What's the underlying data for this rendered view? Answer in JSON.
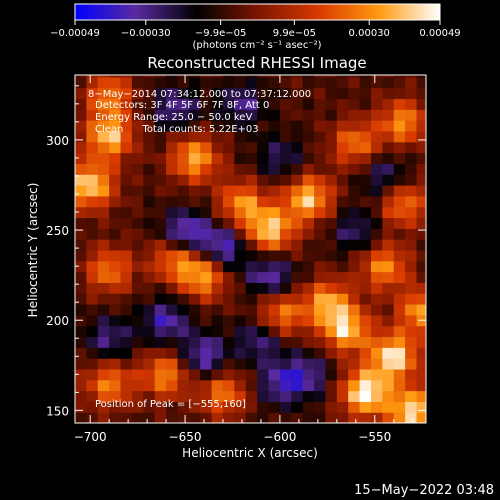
{
  "chart_data": {
    "type": "heatmap",
    "title": "Reconstructed RHESSI Image",
    "xlabel": "Heliocentric X (arcsec)",
    "ylabel": "Heliocentric Y (arcsec)",
    "xlim": [
      -708,
      -523
    ],
    "ylim": [
      143,
      336
    ],
    "x_ticks": [
      -700,
      -650,
      -600,
      -550
    ],
    "x_tick_labels": [
      "−700",
      "−650",
      "−600",
      "−550"
    ],
    "y_ticks": [
      150,
      200,
      250,
      300
    ],
    "y_tick_labels": [
      "150",
      "200",
      "250",
      "300"
    ],
    "colorbar": {
      "range": [
        -0.00049,
        0.00049
      ],
      "tick_values": [
        -0.00049,
        -0.0003,
        -9.9e-05,
        9.9e-05,
        0.0003,
        0.00049
      ],
      "tick_labels": [
        "−0.00049",
        "−0.00030",
        "−9.9e−05",
        "9.9e−05",
        "0.00030",
        "0.00049"
      ],
      "units": "(photons cm⁻² s⁻¹ asec⁻²)",
      "colormap": [
        "#0000ff",
        "#5a2aa0",
        "#000000",
        "#7a1500",
        "#d83a00",
        "#ff9a10",
        "#ffffff"
      ]
    },
    "annotations": [
      "8−May−2014 07:34:12.000  to 07:37:12.000",
      "Detectors: 3F 4F 5F 6F 7F 8F, Att 0",
      "Energy Range: 25.0 − 50.0 keV",
      "Clean      Total counts: 5.22E+03"
    ],
    "peak_label": "Position of Peak = [−555,160]",
    "peak": [
      -555,
      160
    ],
    "hot_spots": [
      {
        "x": -700,
        "y": 275,
        "value": 0.00042
      },
      {
        "x": -690,
        "y": 302,
        "value": 0.00038
      },
      {
        "x": -645,
        "y": 290,
        "value": 0.00035
      },
      {
        "x": -620,
        "y": 265,
        "value": 0.0003
      },
      {
        "x": -605,
        "y": 250,
        "value": 0.0004
      },
      {
        "x": -585,
        "y": 268,
        "value": 0.00039
      },
      {
        "x": -575,
        "y": 210,
        "value": 0.00032
      },
      {
        "x": -600,
        "y": 203,
        "value": 0.0003
      },
      {
        "x": -640,
        "y": 225,
        "value": 0.00034
      },
      {
        "x": -655,
        "y": 235,
        "value": 0.0003
      },
      {
        "x": -690,
        "y": 228,
        "value": 0.00026
      },
      {
        "x": -690,
        "y": 165,
        "value": 0.00028
      },
      {
        "x": -660,
        "y": 170,
        "value": 0.0003
      },
      {
        "x": -630,
        "y": 160,
        "value": 0.00027
      },
      {
        "x": -555,
        "y": 160,
        "value": 0.00049
      },
      {
        "x": -540,
        "y": 180,
        "value": 0.00045
      },
      {
        "x": -530,
        "y": 150,
        "value": 0.00044
      },
      {
        "x": -565,
        "y": 195,
        "value": 0.00038
      },
      {
        "x": -525,
        "y": 205,
        "value": 0.00033
      },
      {
        "x": -545,
        "y": 230,
        "value": 0.0003
      },
      {
        "x": -535,
        "y": 265,
        "value": 0.00028
      },
      {
        "x": -535,
        "y": 310,
        "value": 0.0003
      },
      {
        "x": -560,
        "y": 298,
        "value": 0.00026
      },
      {
        "x": -690,
        "y": 325,
        "value": 0.00026
      }
    ],
    "cold_spots": [
      {
        "x": -650,
        "y": 248,
        "value": -0.00045
      },
      {
        "x": -630,
        "y": 240,
        "value": -0.0004
      },
      {
        "x": -605,
        "y": 225,
        "value": -0.00036
      },
      {
        "x": -660,
        "y": 200,
        "value": -0.00035
      },
      {
        "x": -640,
        "y": 180,
        "value": -0.00038
      },
      {
        "x": -610,
        "y": 190,
        "value": -0.00033
      },
      {
        "x": -585,
        "y": 170,
        "value": -0.0003
      },
      {
        "x": -600,
        "y": 165,
        "value": -0.00032
      },
      {
        "x": -690,
        "y": 190,
        "value": -0.0003
      },
      {
        "x": -655,
        "y": 318,
        "value": -0.00032
      },
      {
        "x": -620,
        "y": 320,
        "value": -0.0003
      },
      {
        "x": -560,
        "y": 250,
        "value": -0.00028
      },
      {
        "x": -545,
        "y": 280,
        "value": -0.0003
      },
      {
        "x": -600,
        "y": 290,
        "value": -0.00026
      }
    ]
  },
  "footer": {
    "timestamp": "15−May−2022 03:48"
  }
}
